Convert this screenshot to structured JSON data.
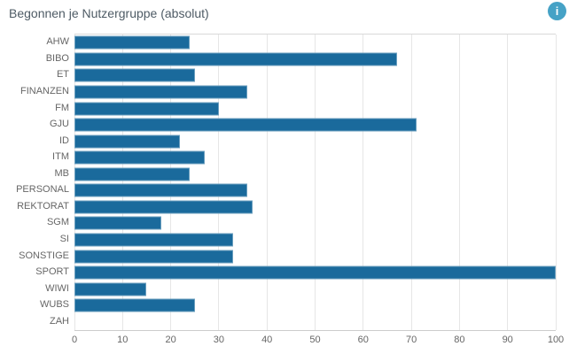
{
  "header": {
    "title": "Begonnen je Nutzergruppe (absolut)",
    "info_icon_glyph": "i"
  },
  "colors": {
    "bar": "#1a6a9c",
    "grid": "#e6e6e6",
    "axis_line": "#cccccc",
    "plot_top_border": "#d9d9d9",
    "title_text": "#4e5b65",
    "tick_text": "#666666",
    "info_badge": "#46a2c6",
    "info_glyph": "#ffffff",
    "background": "#ffffff"
  },
  "chart_data": {
    "type": "bar",
    "orientation": "horizontal",
    "title": "Begonnen je Nutzergruppe (absolut)",
    "categories": [
      "AHW",
      "BIBO",
      "ET",
      "FINANZEN",
      "FM",
      "GJU",
      "ID",
      "ITM",
      "MB",
      "PERSONAL",
      "REKTORAT",
      "SGM",
      "SI",
      "SONSTIGE",
      "SPORT",
      "WIWI",
      "WUBS",
      "ZAH"
    ],
    "values": [
      24,
      67,
      25,
      36,
      30,
      71,
      22,
      27,
      24,
      36,
      37,
      18,
      33,
      33,
      100,
      15,
      25,
      0
    ],
    "xlabel": "",
    "ylabel": "",
    "xlim": [
      0,
      100
    ],
    "xticks": [
      0,
      10,
      20,
      30,
      40,
      50,
      60,
      70,
      80,
      90,
      100
    ],
    "grid": true,
    "legend": false
  }
}
